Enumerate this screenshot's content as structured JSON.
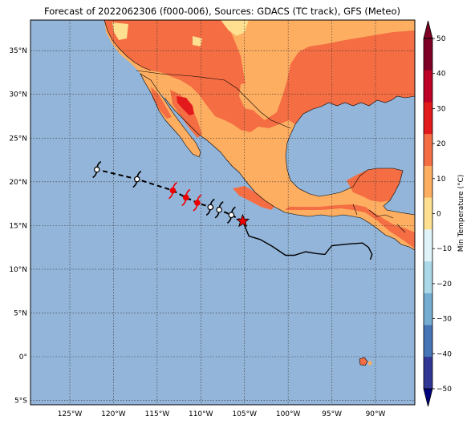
{
  "title": "Forecast of 2022062306 (f000-006), Sources: GDACS (TC track), GFS (Meteo)",
  "map": {
    "lon_range": [
      -129.5,
      -85.5
    ],
    "lat_range": [
      -5.5,
      38.5
    ],
    "lat_ticks": [
      {
        "value": 35,
        "label": "35°N"
      },
      {
        "value": 30,
        "label": "30°N"
      },
      {
        "value": 25,
        "label": "25°N"
      },
      {
        "value": 20,
        "label": "20°N"
      },
      {
        "value": 15,
        "label": "15°N"
      },
      {
        "value": 10,
        "label": "10°N"
      },
      {
        "value": 5,
        "label": "5°N"
      },
      {
        "value": 0,
        "label": "0°"
      },
      {
        "value": -5,
        "label": "5°S"
      }
    ],
    "lon_ticks": [
      {
        "value": -125,
        "label": "125°W"
      },
      {
        "value": -120,
        "label": "120°W"
      },
      {
        "value": -115,
        "label": "115°W"
      },
      {
        "value": -110,
        "label": "110°W"
      },
      {
        "value": -105,
        "label": "105°W"
      },
      {
        "value": -100,
        "label": "100°W"
      },
      {
        "value": -95,
        "label": "95°W"
      },
      {
        "value": -90,
        "label": "90°W"
      }
    ],
    "gridlines": true,
    "ocean_color": "#93b5d9"
  },
  "track": {
    "current_position": {
      "lon": -105.2,
      "lat": 15.5
    },
    "past_track": [
      {
        "lon": -105.2,
        "lat": 15.5
      },
      {
        "lon": -104.5,
        "lat": 13.8
      },
      {
        "lon": -103.2,
        "lat": 13.4
      },
      {
        "lon": -101.8,
        "lat": 12.6
      },
      {
        "lon": -100.3,
        "lat": 11.6
      },
      {
        "lon": -99.3,
        "lat": 11.6
      },
      {
        "lon": -98.0,
        "lat": 12.0
      },
      {
        "lon": -96.8,
        "lat": 11.8
      },
      {
        "lon": -95.8,
        "lat": 11.7
      },
      {
        "lon": -95.0,
        "lat": 12.7
      },
      {
        "lon": -93.0,
        "lat": 12.9
      },
      {
        "lon": -91.5,
        "lat": 13.0
      },
      {
        "lon": -90.8,
        "lat": 12.5
      },
      {
        "lon": -90.4,
        "lat": 11.7
      },
      {
        "lon": -90.6,
        "lat": 11.1
      }
    ],
    "forecast_points": [
      {
        "lon": -106.5,
        "lat": 16.2,
        "category": "depression",
        "color": "#000000"
      },
      {
        "lon": -107.9,
        "lat": 16.8,
        "category": "depression",
        "color": "#000000"
      },
      {
        "lon": -108.9,
        "lat": 17.1,
        "category": "depression",
        "color": "#000000"
      },
      {
        "lon": -110.4,
        "lat": 17.6,
        "category": "storm",
        "color": "#ee0000"
      },
      {
        "lon": -111.7,
        "lat": 18.2,
        "category": "storm",
        "color": "#ee0000"
      },
      {
        "lon": -113.2,
        "lat": 19.0,
        "category": "storm",
        "color": "#ee0000"
      },
      {
        "lon": -117.3,
        "lat": 20.3,
        "category": "depression",
        "color": "#000000"
      },
      {
        "lon": -121.9,
        "lat": 21.4,
        "category": "depression",
        "color": "#000000"
      }
    ]
  },
  "colorbar": {
    "label": "Min Temperature (°C)",
    "ticks": [
      "50",
      "40",
      "30",
      "20",
      "10",
      "0",
      "−10",
      "−20",
      "−30",
      "−40",
      "−50"
    ],
    "colors": [
      "#7f0026",
      "#bd0026",
      "#e31a1c",
      "#f46d43",
      "#fdae61",
      "#fee090",
      "#e0f3f8",
      "#abd9e9",
      "#74add1",
      "#4575b4",
      "#313695"
    ],
    "extend_high": "#7f0026",
    "extend_low": "#00007f"
  }
}
